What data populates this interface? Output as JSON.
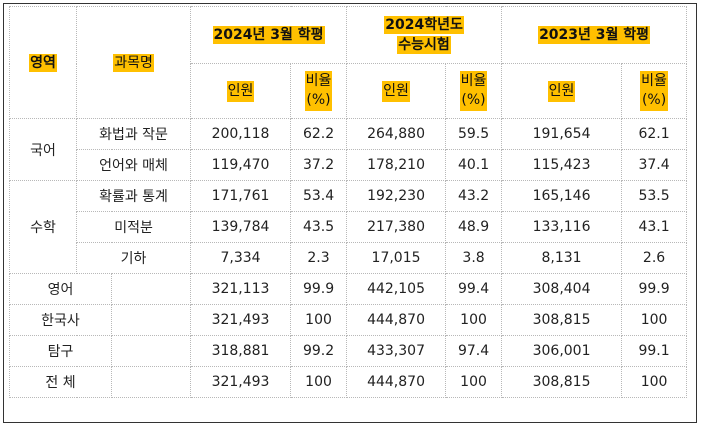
{
  "header": {
    "area": "영역",
    "subject": "과목명",
    "groups": [
      "2024년 3월 학평",
      "2024학년도 수능시험",
      "2023년 3월 학평"
    ],
    "group_line1": [
      "2024년 3월 학평",
      "2024학년도",
      "2023년 3월 학평"
    ],
    "group_line2": [
      "",
      "수능시험",
      ""
    ],
    "count_label": "인원",
    "ratio_label_line1": "비율",
    "ratio_label_line2": "(%)"
  },
  "areas": {
    "korean": "국어",
    "math": "수학"
  },
  "rows": [
    {
      "subject": "화법과 작문",
      "v": [
        "200,118",
        "62.2",
        "264,880",
        "59.5",
        "191,654",
        "62.1"
      ]
    },
    {
      "subject": "언어와 매체",
      "v": [
        "119,470",
        "37.2",
        "178,210",
        "40.1",
        "115,423",
        "37.4"
      ]
    },
    {
      "subject": "확률과 통계",
      "v": [
        "171,761",
        "53.4",
        "192,230",
        "43.2",
        "165,146",
        "53.5"
      ]
    },
    {
      "subject": "미적분",
      "v": [
        "139,784",
        "43.5",
        "217,380",
        "48.9",
        "133,116",
        "43.1"
      ]
    },
    {
      "subject": "기하",
      "v": [
        "7,334",
        "2.3",
        "17,015",
        "3.8",
        "8,131",
        "2.6"
      ]
    },
    {
      "subject": "영어",
      "v": [
        "321,113",
        "99.9",
        "442,105",
        "99.4",
        "308,404",
        "99.9"
      ]
    },
    {
      "subject": "한국사",
      "v": [
        "321,493",
        "100",
        "444,870",
        "100",
        "308,815",
        "100"
      ]
    },
    {
      "subject": "탐구",
      "v": [
        "318,881",
        "99.2",
        "433,307",
        "97.4",
        "306,001",
        "99.1"
      ]
    },
    {
      "subject": "전 체",
      "v": [
        "321,493",
        "100",
        "444,870",
        "100",
        "308,815",
        "100"
      ]
    }
  ],
  "colors": {
    "highlight": "#ffc000",
    "border": "#333333",
    "grid": "#b8b8b8"
  }
}
